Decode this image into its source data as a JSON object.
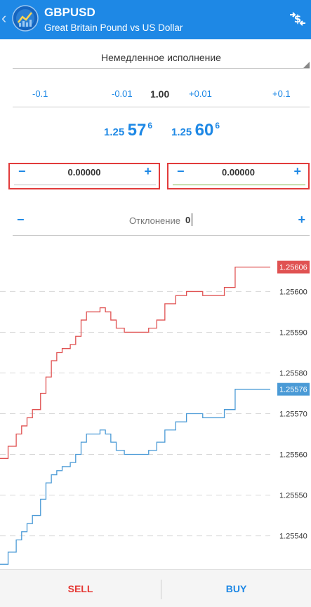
{
  "header": {
    "symbol": "GBPUSD",
    "description": "Great Britain Pound vs US Dollar",
    "background": "#1e88e5"
  },
  "execution": {
    "label": "Немедленное исполнение"
  },
  "volume": {
    "steps": [
      "-0.1",
      "-0.01",
      "+0.01",
      "+0.1"
    ],
    "value": "1.00"
  },
  "prices": {
    "sell": {
      "prefix": "1.25",
      "big": "57",
      "sup": "6"
    },
    "buy": {
      "prefix": "1.25",
      "big": "60",
      "sup": "6"
    }
  },
  "stop_loss": {
    "minus": "−",
    "plus": "+",
    "value": "0.00000",
    "line_color": "#bdbdbd"
  },
  "take_profit": {
    "minus": "−",
    "plus": "+",
    "value": "0.00000",
    "line_color": "#7cb342"
  },
  "deviation": {
    "minus": "−",
    "plus": "+",
    "label": "Отклонение",
    "value": "0"
  },
  "chart_data": {
    "type": "line",
    "y_ticks": [
      "1.25600",
      "1.25590",
      "1.25580",
      "1.25570",
      "1.25560",
      "1.25550",
      "1.25540"
    ],
    "ylim": [
      1.25532,
      1.25613
    ],
    "grid": true,
    "series": [
      {
        "color": "#e05252",
        "badge": "1.25606",
        "x": [
          0,
          0.03,
          0.06,
          0.08,
          0.1,
          0.12,
          0.15,
          0.17,
          0.19,
          0.21,
          0.23,
          0.26,
          0.28,
          0.3,
          0.32,
          0.35,
          0.37,
          0.39,
          0.41,
          0.43,
          0.46,
          0.48,
          0.51,
          0.55,
          0.58,
          0.61,
          0.65,
          0.69,
          0.72,
          0.75,
          0.79,
          0.83,
          0.87,
          1.0
        ],
        "y": [
          1.25559,
          1.25562,
          1.25565,
          1.25567,
          1.25569,
          1.25571,
          1.25575,
          1.25579,
          1.25583,
          1.25585,
          1.25586,
          1.25587,
          1.25589,
          1.25593,
          1.25595,
          1.25595,
          1.25596,
          1.25595,
          1.25593,
          1.25591,
          1.2559,
          1.2559,
          1.2559,
          1.25591,
          1.25593,
          1.25597,
          1.25599,
          1.256,
          1.256,
          1.25599,
          1.25599,
          1.25601,
          1.25606,
          1.25606
        ]
      },
      {
        "color": "#4a9ad6",
        "badge": "1.25576",
        "x": [
          0,
          0.03,
          0.06,
          0.08,
          0.1,
          0.12,
          0.15,
          0.17,
          0.19,
          0.21,
          0.23,
          0.26,
          0.28,
          0.3,
          0.32,
          0.35,
          0.37,
          0.39,
          0.41,
          0.43,
          0.46,
          0.48,
          0.51,
          0.55,
          0.58,
          0.61,
          0.65,
          0.69,
          0.72,
          0.75,
          0.79,
          0.83,
          0.87,
          1.0
        ],
        "y": [
          1.25533,
          1.25536,
          1.25539,
          1.25541,
          1.25543,
          1.25545,
          1.25549,
          1.25553,
          1.25555,
          1.25556,
          1.25557,
          1.25558,
          1.2556,
          1.25563,
          1.25565,
          1.25565,
          1.25566,
          1.25565,
          1.25563,
          1.25561,
          1.2556,
          1.2556,
          1.2556,
          1.25561,
          1.25563,
          1.25566,
          1.25568,
          1.2557,
          1.2557,
          1.25569,
          1.25569,
          1.25571,
          1.25576,
          1.25576
        ]
      }
    ]
  },
  "bottom": {
    "sell_label": "SELL",
    "buy_label": "BUY"
  }
}
